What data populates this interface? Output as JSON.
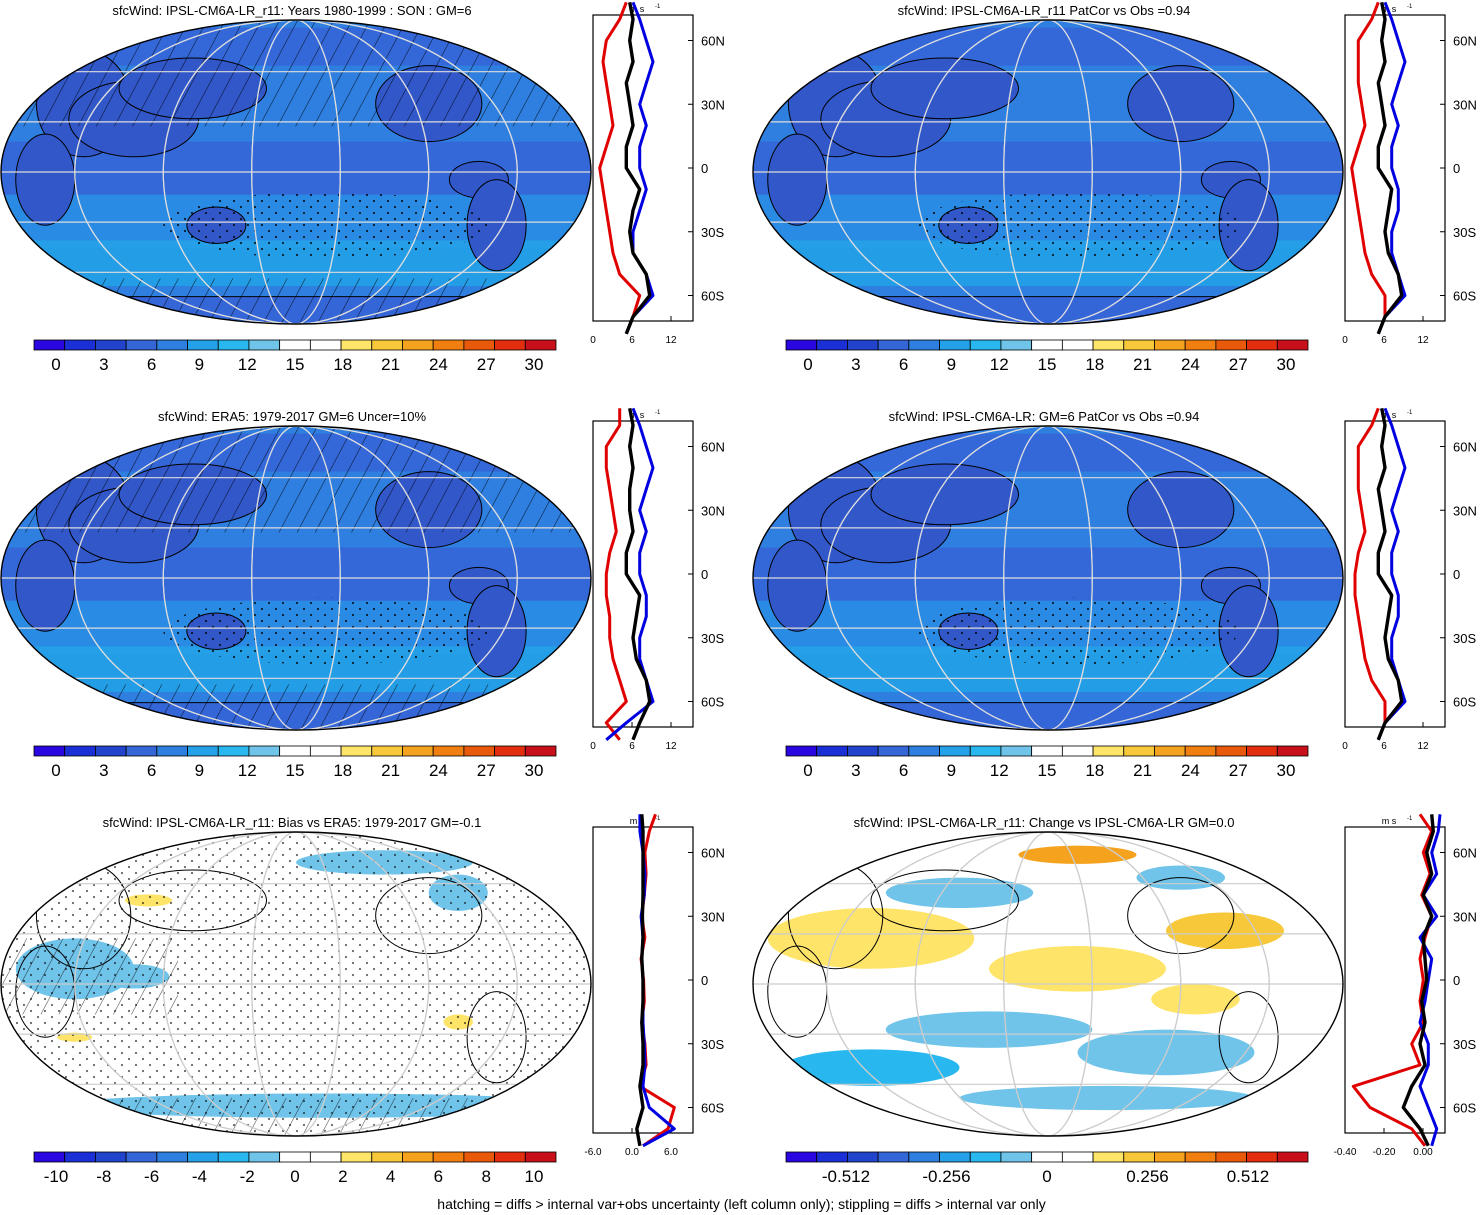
{
  "footer_note": "hatching = diffs > internal var+obs uncertainty (left column only); stippling = diffs > internal var only",
  "units_label": "m s",
  "units_exp": "-1",
  "lat_tick_labels": [
    "60N",
    "30N",
    "0",
    "30S",
    "60S"
  ],
  "colors": {
    "bar_scale": [
      "#2a06e0",
      "#1b2fd6",
      "#2244cc",
      "#3566d8",
      "#2f7fe0",
      "#24a1e8",
      "#28b8ef",
      "#70c4ea",
      "#ffffff",
      "#ffffff",
      "#ffe46a",
      "#f7c93a",
      "#f5a21e",
      "#f07f10",
      "#e85a0a",
      "#e22d0e",
      "#c8101a"
    ],
    "line_model": "#e00000",
    "line_obs": "#0000e0",
    "line_mme": "#000000"
  },
  "panels": [
    {
      "id": "model-climatology",
      "title": "sfcWind: IPSL-CM6A-LR_r11: Years 1980-1999 : SON : GM=6",
      "colorbar_labels": [
        "0",
        "3",
        "6",
        "9",
        "12",
        "15",
        "18",
        "21",
        "24",
        "27",
        "30"
      ],
      "profile_ticks": [
        "0",
        "6",
        "12"
      ],
      "chart_data": {
        "type": "heatmap",
        "variable": "sfcWind",
        "gm": 6,
        "colorbar_range": [
          0,
          30
        ],
        "zonal_profile": {
          "type": "line",
          "xlim": [
            0,
            15
          ],
          "lat": [
            -78,
            -70,
            -60,
            -50,
            -40,
            -30,
            -20,
            -10,
            0,
            10,
            20,
            30,
            40,
            50,
            60,
            70,
            78
          ],
          "series": [
            {
              "values": [
                5,
                6,
                7,
                4,
                3,
                2.5,
                2,
                1.5,
                1,
                2,
                3,
                2.5,
                2,
                1.5,
                2,
                4,
                5
              ]
            },
            {
              "values": [
                5,
                6,
                9,
                8,
                6,
                6,
                7,
                8,
                7,
                7,
                8,
                7,
                8,
                9,
                8,
                7,
                6
              ]
            },
            {
              "values": [
                5,
                6,
                8.5,
                8,
                6,
                5.5,
                6,
                7,
                5,
                5,
                6,
                5.5,
                5,
                6,
                5.5,
                6,
                5.5
              ]
            }
          ]
        }
      }
    },
    {
      "id": "model-patcor",
      "title": "sfcWind: IPSL-CM6A-LR_r11 PatCor vs Obs =0.94",
      "colorbar_labels": [
        "0",
        "3",
        "6",
        "9",
        "12",
        "15",
        "18",
        "21",
        "24",
        "27",
        "30"
      ],
      "profile_ticks": [
        "0",
        "6",
        "12"
      ],
      "chart_data": {
        "type": "heatmap",
        "variable": "sfcWind",
        "pattern_correlation": 0.94,
        "colorbar_range": [
          0,
          30
        ],
        "zonal_profile": {
          "type": "line",
          "xlim": [
            0,
            15
          ],
          "lat": [
            -78,
            -70,
            -60,
            -50,
            -40,
            -30,
            -20,
            -10,
            0,
            10,
            20,
            30,
            40,
            50,
            60,
            70,
            78
          ],
          "series": [
            {
              "values": [
                5,
                6,
                6,
                4,
                3,
                2.5,
                2,
                1.5,
                1,
                2,
                3,
                2.5,
                2,
                2,
                2,
                4,
                5
              ]
            },
            {
              "values": [
                5,
                6,
                9,
                8,
                7,
                7,
                8,
                8,
                7,
                7,
                8,
                7,
                8,
                9,
                8,
                7,
                6
              ]
            },
            {
              "values": [
                5,
                6,
                8.5,
                8,
                6.5,
                6,
                6.5,
                7,
                5,
                5,
                6,
                5.5,
                5,
                6,
                5.5,
                6,
                5.5
              ]
            }
          ]
        }
      }
    },
    {
      "id": "obs-climatology",
      "title": "sfcWind: ERA5: 1979-2017 GM=6 Uncer=10%",
      "colorbar_labels": [
        "0",
        "3",
        "6",
        "9",
        "12",
        "15",
        "18",
        "21",
        "24",
        "27",
        "30"
      ],
      "profile_ticks": [
        "0",
        "6",
        "12"
      ],
      "chart_data": {
        "type": "heatmap",
        "variable": "sfcWind",
        "gm": 6,
        "uncertainty_pct": 10,
        "colorbar_range": [
          0,
          30
        ],
        "zonal_profile": {
          "type": "line",
          "xlim": [
            0,
            15
          ],
          "lat": [
            -78,
            -70,
            -60,
            -50,
            -40,
            -30,
            -20,
            -10,
            0,
            10,
            20,
            30,
            40,
            50,
            60,
            70,
            78
          ],
          "series": [
            {
              "values": [
                4,
                2,
                5,
                4,
                3,
                2.5,
                2.5,
                2,
                2,
                2.5,
                3.5,
                3,
                2.5,
                2,
                2,
                4,
                4
              ]
            },
            {
              "values": [
                2,
                5,
                9,
                8,
                7,
                7,
                8,
                8,
                7,
                7,
                8,
                7,
                8,
                9,
                8,
                7,
                6
              ]
            },
            {
              "values": [
                6,
                7,
                8.5,
                8,
                6.5,
                6,
                6.5,
                7,
                5,
                5,
                6,
                5.5,
                5.5,
                6,
                5.5,
                6,
                5.5
              ]
            }
          ]
        }
      }
    },
    {
      "id": "mme-patcor",
      "title": "sfcWind: IPSL-CM6A-LR: GM=6 PatCor vs Obs =0.94",
      "colorbar_labels": [
        "0",
        "3",
        "6",
        "9",
        "12",
        "15",
        "18",
        "21",
        "24",
        "27",
        "30"
      ],
      "profile_ticks": [
        "0",
        "6",
        "12"
      ],
      "chart_data": {
        "type": "heatmap",
        "variable": "sfcWind",
        "gm": 6,
        "pattern_correlation": 0.94,
        "colorbar_range": [
          0,
          30
        ],
        "zonal_profile": {
          "type": "line",
          "xlim": [
            0,
            15
          ],
          "lat": [
            -78,
            -70,
            -60,
            -50,
            -40,
            -30,
            -20,
            -10,
            0,
            10,
            20,
            30,
            40,
            50,
            60,
            70,
            78
          ],
          "series": [
            {
              "values": [
                5,
                6,
                6,
                4,
                3,
                2.5,
                2,
                1.5,
                1.5,
                2,
                3,
                2.5,
                2,
                2,
                2,
                4,
                5
              ]
            },
            {
              "values": [
                5,
                6,
                9,
                8,
                7,
                7,
                8,
                8,
                7,
                7,
                8,
                7,
                8,
                9,
                8,
                7,
                6
              ]
            },
            {
              "values": [
                5,
                6,
                8.5,
                8,
                6.5,
                6,
                6.5,
                7,
                5,
                5,
                6,
                5.5,
                5,
                6,
                5.5,
                6,
                5.5
              ]
            }
          ]
        }
      }
    },
    {
      "id": "bias-vs-obs",
      "title": "sfcWind: IPSL-CM6A-LR_r11: Bias vs ERA5: 1979-2017  GM=-0.1",
      "colorbar_labels": [
        "-10",
        "-8",
        "-6",
        "-4",
        "-2",
        "0",
        "2",
        "4",
        "6",
        "8",
        "10"
      ],
      "profile_ticks": [
        "-6.0",
        "0.0",
        "6.0"
      ],
      "chart_data": {
        "type": "heatmap",
        "variable": "sfcWind bias",
        "gm": -0.1,
        "colorbar_range": [
          -10,
          10
        ],
        "zonal_profile": {
          "type": "line",
          "xlim": [
            -8,
            8
          ],
          "lat": [
            -78,
            -70,
            -60,
            -50,
            -40,
            -30,
            -20,
            -10,
            0,
            10,
            20,
            30,
            40,
            50,
            60,
            70,
            78
          ],
          "series": [
            {
              "values": [
                0,
                4,
                5,
                -0.5,
                0.5,
                0.3,
                -0.2,
                0.2,
                0.1,
                -0.3,
                0.3,
                -0.2,
                0.2,
                0.5,
                0.3,
                1,
                2
              ]
            },
            {
              "values": [
                0,
                5,
                1,
                0,
                0.3,
                0.2,
                0,
                0,
                0,
                -0.2,
                0,
                -0.3,
                0.2,
                0.3,
                0,
                -0.5,
                -0.5
              ]
            },
            {
              "values": [
                -0.5,
                -1,
                0,
                -0.5,
                0,
                0,
                -0.2,
                0,
                0,
                -0.2,
                0,
                -0.1,
                0,
                0,
                0,
                0,
                -0.2
              ]
            }
          ]
        }
      }
    },
    {
      "id": "change-vs-mme",
      "title": "sfcWind: IPSL-CM6A-LR_r11: Change vs IPSL-CM6A-LR GM=0.0",
      "colorbar_labels": [
        "-0.512",
        "-0.256",
        "0",
        "0.256",
        "0.512"
      ],
      "profile_ticks": [
        "-0.40",
        "-0.20",
        "0.00"
      ],
      "chart_data": {
        "type": "heatmap",
        "variable": "sfcWind change",
        "gm": 0.0,
        "colorbar_range": [
          -0.7,
          0.7
        ],
        "zonal_profile": {
          "type": "line",
          "xlim": [
            -0.5,
            0.1
          ],
          "lat": [
            -78,
            -70,
            -60,
            -50,
            -40,
            -30,
            -20,
            -10,
            0,
            10,
            20,
            30,
            40,
            50,
            60,
            70,
            78
          ],
          "series": [
            {
              "values": [
                -0.02,
                -0.1,
                -0.35,
                -0.45,
                -0.05,
                -0.1,
                -0.03,
                -0.05,
                -0.03,
                -0.05,
                -0.02,
                0.02,
                -0.04,
                0.01,
                -0.03,
                0.02,
                -0.05
              ]
            },
            {
              "values": [
                0.02,
                0.05,
                0,
                -0.05,
                0,
                0,
                -0.05,
                -0.02,
                0,
                0.02,
                -0.05,
                0.05,
                -0.03,
                0.05,
                0.02,
                0.06,
                0.07
              ]
            },
            {
              "values": [
                0,
                -0.05,
                -0.15,
                -0.1,
                -0.02,
                -0.05,
                -0.02,
                -0.04,
                -0.01,
                -0.02,
                -0.03,
                0.02,
                -0.03,
                0.02,
                -0.01,
                0.03,
                0.02
              ]
            }
          ]
        }
      }
    }
  ]
}
